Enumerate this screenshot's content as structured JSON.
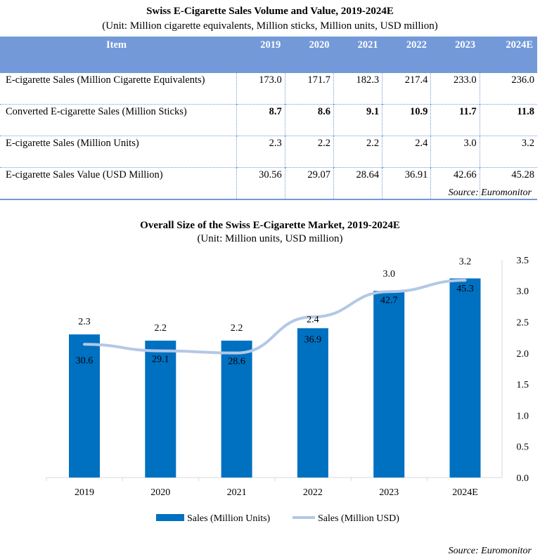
{
  "table": {
    "title": "Swiss E-Cigarette Sales Volume and Value, 2019-2024E",
    "subtitle": "(Unit: Million cigarette equivalents, Million sticks, Million units, USD million)",
    "header_color": "#7399d9",
    "columns": [
      "Item",
      "2019",
      "2020",
      "2021",
      "2022",
      "2023",
      "2024E"
    ],
    "rows": [
      {
        "label": "E-cigarette Sales (Million Cigarette Equivalents)",
        "values": [
          "173.0",
          "171.7",
          "182.3",
          "217.4",
          "233.0",
          "236.0"
        ],
        "bold": false
      },
      {
        "label": "Converted E-cigarette Sales (Million Sticks)",
        "values": [
          "8.7",
          "8.6",
          "9.1",
          "10.9",
          "11.7",
          "11.8"
        ],
        "bold": true
      },
      {
        "label": "E-cigarette Sales (Million Units)",
        "values": [
          "2.3",
          "2.2",
          "2.2",
          "2.4",
          "3.0",
          "3.2"
        ],
        "bold": false
      },
      {
        "label": "E-cigarette Sales Value (USD Million)",
        "values": [
          "30.56",
          "29.07",
          "28.64",
          "36.91",
          "42.66",
          "45.28"
        ],
        "bold": false
      }
    ],
    "source": "Source:  Euromonitor"
  },
  "chart_data": {
    "type": "bar",
    "title": "Overall Size of the Swiss E-Cigarette Market, 2019-2024E",
    "subtitle": "(Unit: Million units, USD million)",
    "categories": [
      "2019",
      "2020",
      "2021",
      "2022",
      "2023",
      "2024E"
    ],
    "series": [
      {
        "name": "Sales (Million Units)",
        "type": "bar",
        "color": "#0070c0",
        "axis": "right",
        "values": [
          2.3,
          2.2,
          2.2,
          2.4,
          3.0,
          3.2
        ],
        "labels": [
          "2.3",
          "2.2",
          "2.2",
          "2.4",
          "3.0",
          "3.2"
        ]
      },
      {
        "name": "Sales (Million USD)",
        "type": "line",
        "color": "#b4c7e7",
        "axis": "hidden-secondary",
        "values": [
          30.6,
          29.1,
          28.6,
          36.9,
          42.7,
          45.3
        ],
        "labels": [
          "30.6",
          "29.1",
          "28.6",
          "36.9",
          "42.7",
          "45.3"
        ]
      }
    ],
    "y_right": {
      "range": [
        0,
        3.5
      ],
      "ticks": [
        "0.0",
        "0.5",
        "1.0",
        "1.5",
        "2.0",
        "2.5",
        "3.0",
        "3.5"
      ]
    },
    "legend": "bottom",
    "grid": false,
    "source": "Source:  Euromonitor"
  }
}
